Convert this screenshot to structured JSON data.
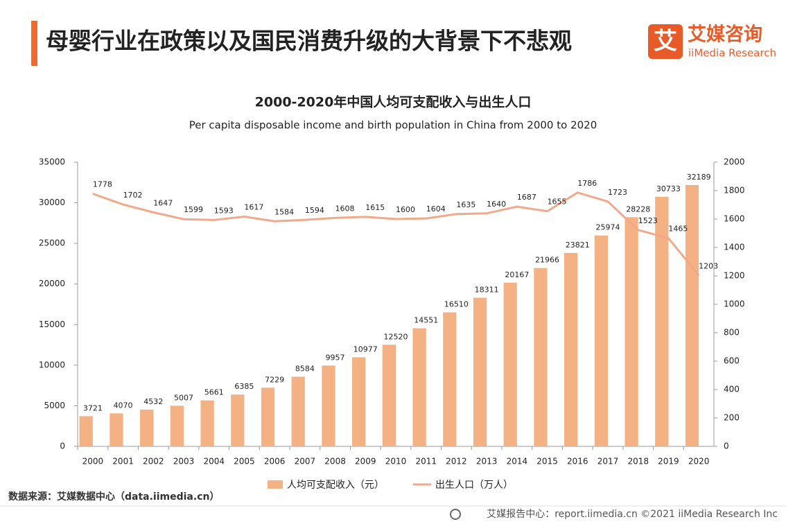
{
  "header": {
    "title": "母婴行业在政策以及国民消费升级的大背景下不悲观",
    "logo_mark": "艾",
    "logo_name": "艾媒咨询",
    "logo_sub": "iiMedia Research"
  },
  "chart_data": {
    "type": "bar",
    "title": "2000-2020年中国人均可支配收入与出生人口",
    "subtitle": "Per capita disposable income and birth population in China from 2000 to 2020",
    "categories": [
      "2000",
      "2001",
      "2002",
      "2003",
      "2004",
      "2005",
      "2006",
      "2007",
      "2008",
      "2009",
      "2010",
      "2011",
      "2012",
      "2013",
      "2014",
      "2015",
      "2016",
      "2017",
      "2018",
      "2019",
      "2020"
    ],
    "series": [
      {
        "name": "人均可支配收入（元）",
        "type": "bar",
        "color": "#f4b183",
        "values": [
          3721,
          4070,
          4532,
          5007,
          5661,
          6385,
          7229,
          8584,
          9957,
          10977,
          12520,
          14551,
          16510,
          18311,
          20167,
          21966,
          23821,
          25974,
          28228,
          30733,
          32189
        ]
      },
      {
        "name": "出生人口（万人）",
        "type": "line",
        "axis": "y2",
        "color": "#f1a98a",
        "values": [
          1778,
          1702,
          1647,
          1599,
          1593,
          1617,
          1584,
          1594,
          1608,
          1615,
          1600,
          1604,
          1635,
          1640,
          1687,
          1655,
          1786,
          1723,
          1523,
          1465,
          1203
        ]
      }
    ],
    "ylim": [
      0,
      35000
    ],
    "yticks": [
      0,
      5000,
      10000,
      15000,
      20000,
      25000,
      30000,
      35000
    ],
    "y2lim": [
      0,
      2000
    ],
    "y2ticks": [
      0,
      200,
      400,
      600,
      800,
      1000,
      1200,
      1400,
      1600,
      1800,
      2000
    ],
    "grid": false,
    "legend": "bottom"
  },
  "source": "数据来源：艾媒数据中心（data.iimedia.cn）",
  "footer": "艾媒报告中心：report.iimedia.cn  ©2021  iiMedia Research  Inc"
}
